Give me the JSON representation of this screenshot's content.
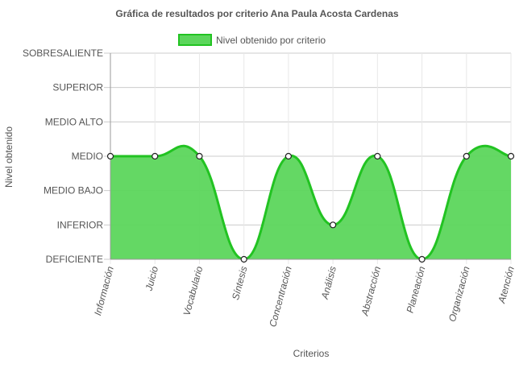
{
  "chart_data": {
    "type": "area",
    "title": "Gráfica de resultados por criterio Ana Paula Acosta Cardenas",
    "xlabel": "Criterios",
    "ylabel": "Nivel obtenido",
    "y_levels": [
      "DEFICIENTE",
      "INFERIOR",
      "MEDIO BAJO",
      "MEDIO",
      "MEDIO ALTO",
      "SUPERIOR",
      "SOBRESALIENTE"
    ],
    "categories": [
      "Información",
      "Juicio",
      "Vocabulario",
      "Síntesis",
      "Concentración",
      "Análisis",
      "Abstracción",
      "Planeación",
      "Organización",
      "Atención"
    ],
    "series": [
      {
        "name": "Nivel obtenido por criterio",
        "values": [
          "MEDIO",
          "MEDIO",
          "MEDIO",
          "DEFICIENTE",
          "MEDIO",
          "INFERIOR",
          "MEDIO",
          "DEFICIENTE",
          "MEDIO",
          "MEDIO"
        ]
      }
    ],
    "legend_position": "top",
    "grid": true,
    "colors": {
      "fill": "#5cd65c",
      "stroke": "#22c322"
    }
  }
}
